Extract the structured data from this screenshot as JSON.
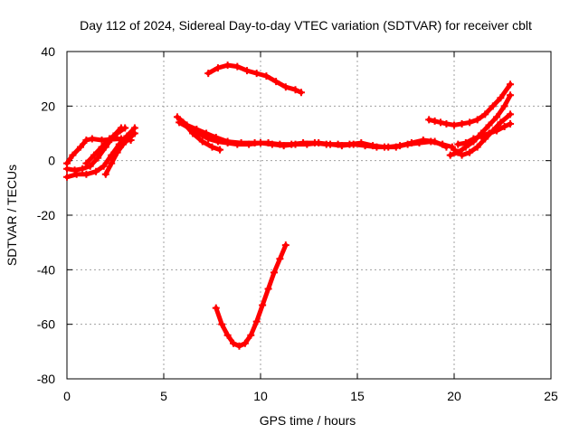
{
  "chart_data": {
    "type": "line",
    "title": "Day 112 of 2024, Sidereal Day-to-day VTEC variation (SDTVAR) for receiver cblt",
    "xlabel": "GPS time / hours",
    "ylabel": "SDTVAR / TECUs",
    "xlim": [
      0,
      25
    ],
    "ylim": [
      -80,
      40
    ],
    "xticks": [
      0,
      5,
      10,
      15,
      20,
      25
    ],
    "yticks": [
      -80,
      -60,
      -40,
      -20,
      0,
      20,
      40
    ],
    "grid": true,
    "series_color": "#ff0000",
    "series": [
      {
        "name": "arc-1",
        "x": [
          0.0,
          0.3,
          0.7,
          1.0,
          1.3,
          1.8,
          2.3,
          2.8,
          3.3
        ],
        "y": [
          -1,
          2,
          5,
          7.5,
          8,
          7.5,
          7.8,
          8,
          7.5
        ]
      },
      {
        "name": "arc-2",
        "x": [
          0.0,
          0.4,
          0.8,
          1.2,
          1.6,
          2.0,
          2.4,
          2.8
        ],
        "y": [
          -3,
          -3.5,
          -3,
          -2,
          1,
          5,
          9,
          12
        ]
      },
      {
        "name": "arc-3",
        "x": [
          0.0,
          0.5,
          1.0,
          1.5,
          1.9,
          2.3,
          2.7,
          3.1,
          3.5
        ],
        "y": [
          -6,
          -5,
          -5,
          -4,
          -2,
          2,
          6,
          9,
          12
        ]
      },
      {
        "name": "arc-4",
        "x": [
          1.0,
          1.4,
          1.8,
          2.2,
          2.6,
          3.0
        ],
        "y": [
          -1,
          2,
          5,
          8,
          10,
          12
        ]
      },
      {
        "name": "arc-5",
        "x": [
          2.0,
          2.3,
          2.6,
          2.9,
          3.2,
          3.5
        ],
        "y": [
          -5,
          -1,
          3,
          6,
          8,
          10
        ]
      },
      {
        "name": "arc-6",
        "x": [
          5.7,
          6.2,
          6.7,
          7.2,
          7.7,
          8.3,
          9.0,
          9.7,
          10.4,
          11.0,
          11.6,
          12.2,
          12.8,
          13.4,
          14.0,
          14.6,
          15.2,
          15.8,
          16.4,
          17.0,
          17.6,
          18.2,
          18.8,
          19.4,
          19.9
        ],
        "y": [
          16,
          13,
          11.5,
          10,
          8.5,
          7,
          6.5,
          6.5,
          6.5,
          6,
          6,
          6.5,
          6.5,
          6,
          6,
          6,
          6.5,
          5.5,
          5,
          5,
          6,
          6.5,
          7,
          6,
          5
        ]
      },
      {
        "name": "arc-7",
        "x": [
          5.8,
          6.3,
          6.8,
          7.3,
          7.8,
          8.3,
          8.8,
          9.4,
          10.0,
          10.6,
          11.2,
          11.8,
          12.4,
          13.0,
          13.6,
          14.2,
          14.8,
          15.4,
          16.0,
          16.6,
          17.2,
          17.8,
          18.4,
          19.0,
          19.6
        ],
        "y": [
          14,
          12,
          10,
          8,
          7,
          6.5,
          6,
          6,
          6.5,
          6,
          5.5,
          6,
          6,
          6.5,
          6,
          5.5,
          6,
          5.5,
          5,
          5,
          5.5,
          6.5,
          7.5,
          7,
          5
        ]
      },
      {
        "name": "arc-8",
        "x": [
          6.0,
          6.5,
          7.0,
          7.5,
          7.9
        ],
        "y": [
          14,
          10,
          7,
          5,
          4
        ]
      },
      {
        "name": "arc-9",
        "x": [
          7.3,
          7.8,
          8.3,
          8.8,
          9.3,
          9.8,
          10.3,
          10.8,
          11.3,
          11.8,
          12.1
        ],
        "y": [
          32,
          34,
          35,
          34.5,
          33,
          32,
          31,
          29,
          27,
          26,
          25
        ]
      },
      {
        "name": "arc-10",
        "x": [
          7.7,
          8.0,
          8.3,
          8.6,
          8.9,
          9.2,
          9.5,
          9.8,
          10.1,
          10.4,
          10.7,
          11.0,
          11.3
        ],
        "y": [
          -54,
          -60,
          -64,
          -67,
          -68,
          -67,
          -64,
          -59,
          -53,
          -47,
          -41,
          -36,
          -31
        ]
      },
      {
        "name": "arc-11",
        "x": [
          18.7,
          19.0,
          19.3,
          19.6,
          20.0,
          20.4,
          20.8,
          21.2,
          21.6,
          22.0,
          22.4,
          22.9
        ],
        "y": [
          15,
          14.5,
          14,
          13.5,
          13,
          13.5,
          14,
          15,
          17,
          20,
          23,
          28
        ]
      },
      {
        "name": "arc-12",
        "x": [
          19.8,
          20.2,
          20.6,
          21.0,
          21.4,
          21.8,
          22.2,
          22.6,
          22.9
        ],
        "y": [
          2,
          3,
          5,
          7,
          10,
          13,
          16,
          20,
          24
        ]
      },
      {
        "name": "arc-13",
        "x": [
          20.0,
          20.4,
          20.8,
          21.2,
          21.6,
          22.0,
          22.4,
          22.9
        ],
        "y": [
          4,
          2,
          3,
          5,
          8,
          11,
          14,
          17
        ]
      },
      {
        "name": "arc-14",
        "x": [
          20.2,
          20.6,
          21.0,
          21.4,
          21.8,
          22.2,
          22.6,
          22.9
        ],
        "y": [
          6,
          6.5,
          8,
          9,
          10,
          11,
          12.5,
          13.5
        ]
      }
    ]
  }
}
